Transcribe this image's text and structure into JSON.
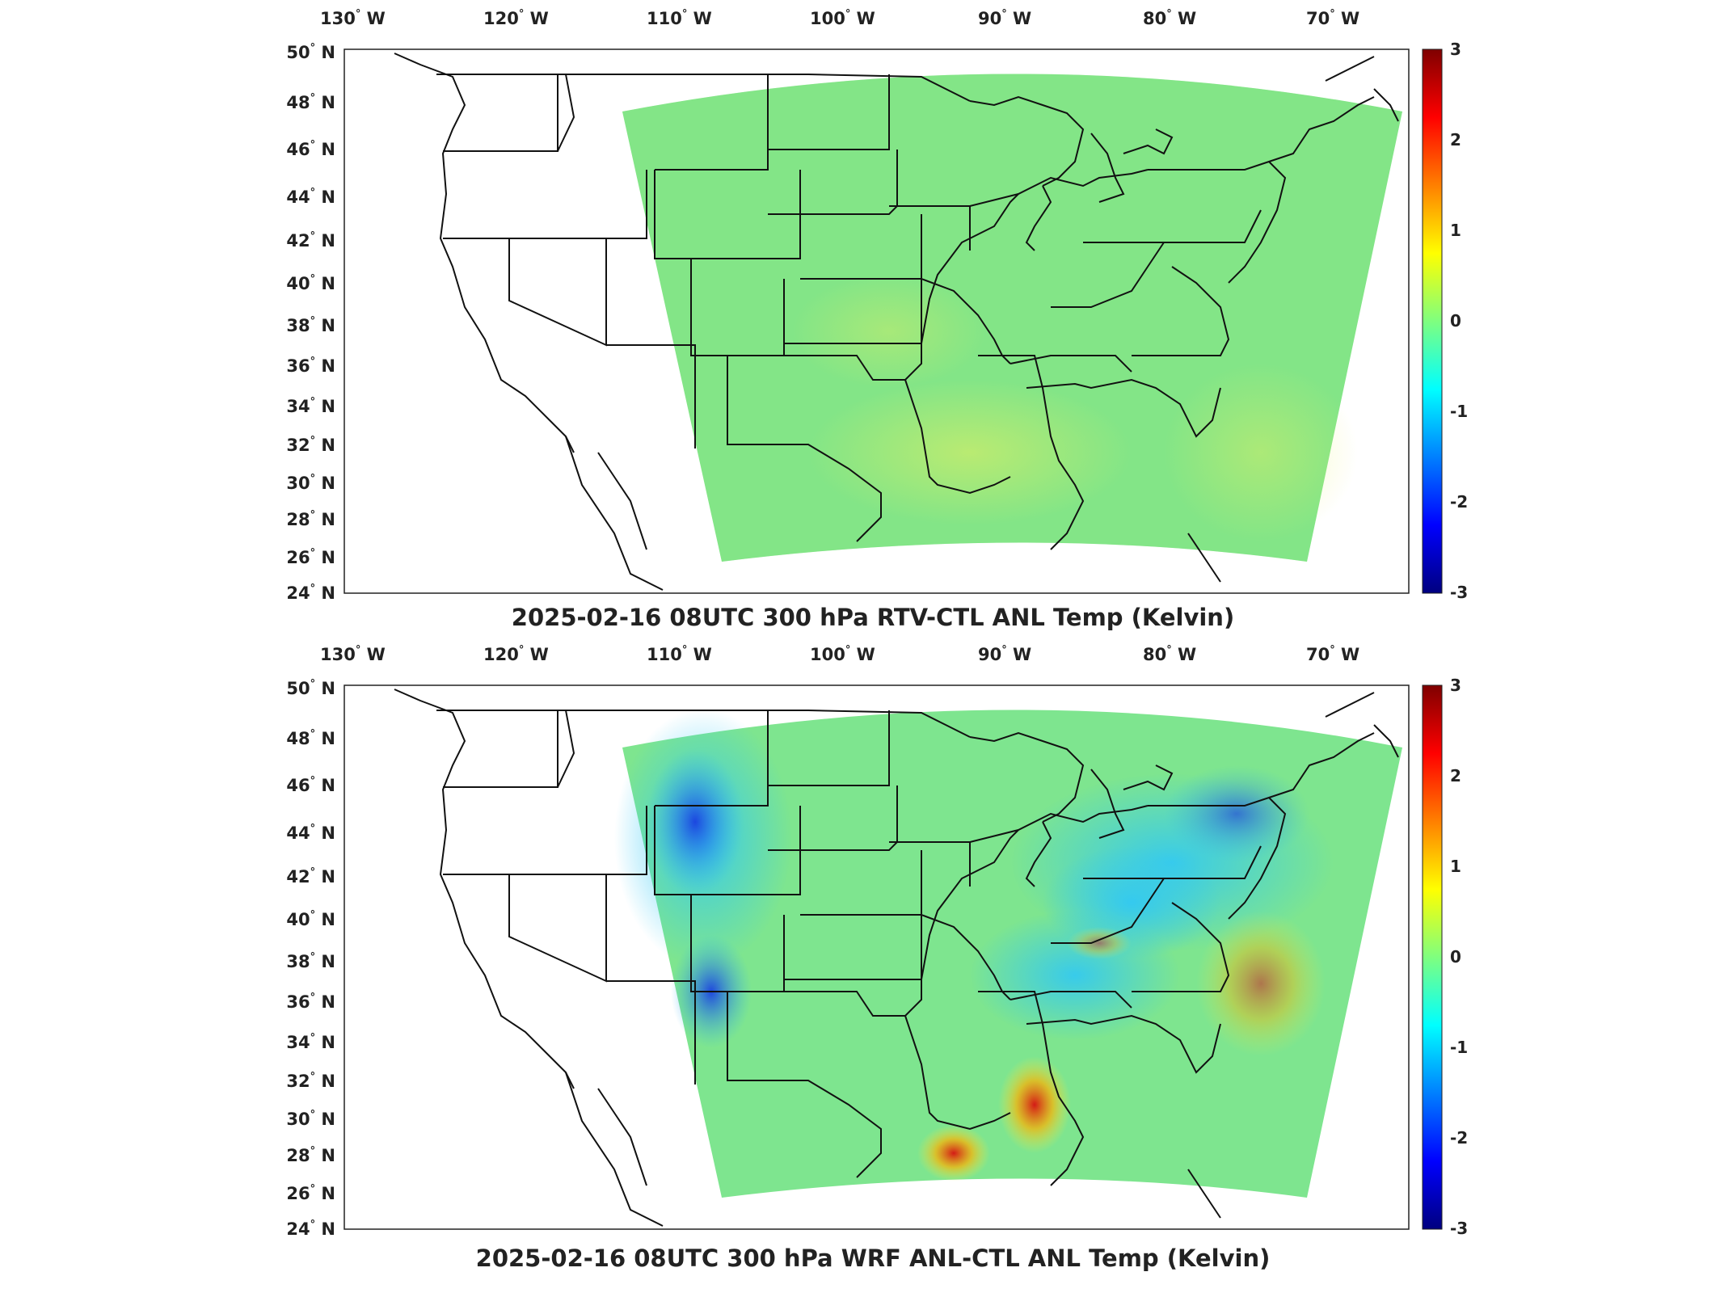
{
  "lon_ticks": [
    {
      "deg": "130",
      "dir": "W"
    },
    {
      "deg": "120",
      "dir": "W"
    },
    {
      "deg": "110",
      "dir": "W"
    },
    {
      "deg": "100",
      "dir": "W"
    },
    {
      "deg": "90",
      "dir": "W"
    },
    {
      "deg": "80",
      "dir": "W"
    },
    {
      "deg": "70",
      "dir": "W"
    }
  ],
  "lat_ticks": [
    {
      "deg": "50",
      "dir": "N"
    },
    {
      "deg": "48",
      "dir": "N"
    },
    {
      "deg": "46",
      "dir": "N"
    },
    {
      "deg": "44",
      "dir": "N"
    },
    {
      "deg": "42",
      "dir": "N"
    },
    {
      "deg": "40",
      "dir": "N"
    },
    {
      "deg": "38",
      "dir": "N"
    },
    {
      "deg": "36",
      "dir": "N"
    },
    {
      "deg": "34",
      "dir": "N"
    },
    {
      "deg": "32",
      "dir": "N"
    },
    {
      "deg": "30",
      "dir": "N"
    },
    {
      "deg": "28",
      "dir": "N"
    },
    {
      "deg": "26",
      "dir": "N"
    },
    {
      "deg": "24",
      "dir": "N"
    }
  ],
  "colorbar": {
    "ticks": [
      "3",
      "2",
      "1",
      "0",
      "-1",
      "-2",
      "-3"
    ],
    "colors": [
      "#00007f",
      "#0000ff",
      "#007fff",
      "#00ffff",
      "#7fff7f",
      "#ffff00",
      "#ff7f00",
      "#ff0000",
      "#7f0000"
    ]
  },
  "panels": [
    {
      "title": "2025-02-16 08UTC 300 hPa RTV-CTL ANL Temp (Kelvin)",
      "field_base": "#7ee08a"
    },
    {
      "title": "2025-02-16 08UTC 300 hPa WRF ANL-CTL ANL Temp (Kelvin)",
      "field_base": "#6ee0a0"
    }
  ]
}
